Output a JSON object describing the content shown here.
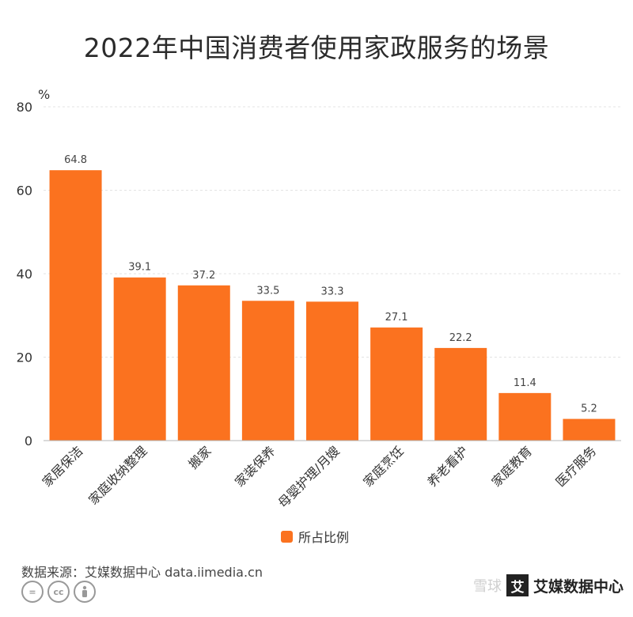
{
  "title": "2022年中国消费者使用家政服务的场景",
  "unit": "%",
  "legend_label": "所占比例",
  "source": "数据来源：艾媒数据中心 data.iimedia.cn",
  "watermark": {
    "xueqiu": "雪球",
    "logo_char": "艾",
    "logo_text": "艾媒数据中心"
  },
  "colors": {
    "bar": "#FB721F",
    "grid": "#e3e3e3",
    "axis": "#b5b5b5"
  },
  "chart_data": {
    "type": "bar",
    "categories": [
      "家居保洁",
      "家庭收纳整理",
      "搬家",
      "家装保养",
      "母婴护理/月嫂",
      "家庭烹饪",
      "养老看护",
      "家庭教育",
      "医疗服务"
    ],
    "series": [
      {
        "name": "所占比例",
        "values": [
          64.8,
          39.1,
          37.2,
          33.5,
          33.3,
          27.1,
          22.2,
          11.4,
          5.2
        ]
      }
    ],
    "ylabel": "%",
    "ylim": [
      0,
      80
    ],
    "yticks": [
      0,
      20,
      40,
      60,
      80
    ],
    "grid": true,
    "legend_position": "bottom"
  }
}
